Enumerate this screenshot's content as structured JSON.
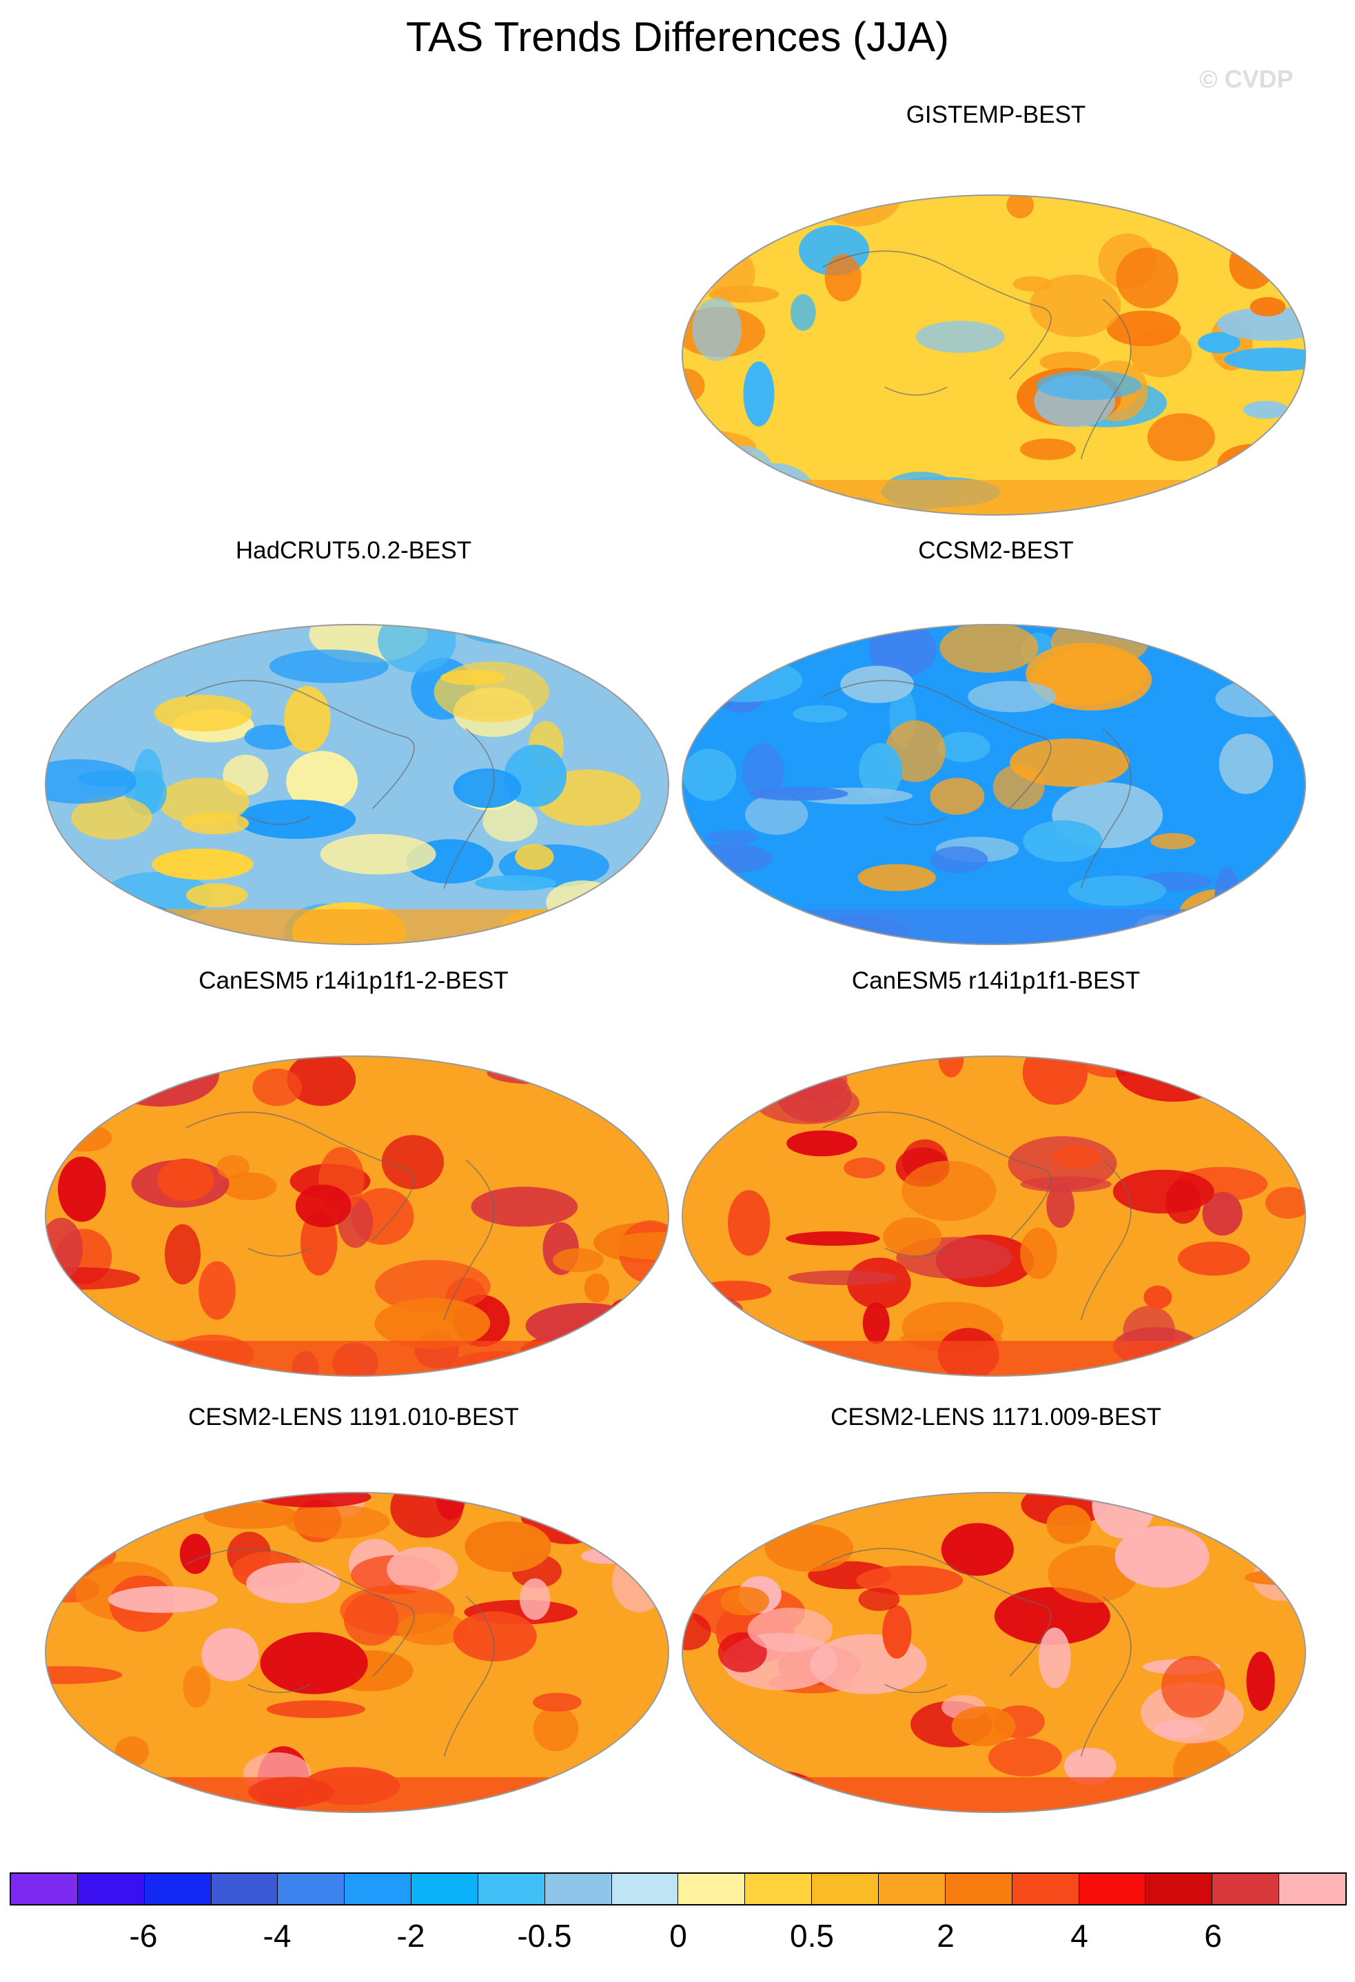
{
  "title": "TAS Trends Differences (JJA)",
  "watermark": "© CVDP",
  "panels": [
    {
      "label": "GISTEMP-BEST",
      "regime": "mixed",
      "base": "#fed33c",
      "accents": [
        "#8ec6e9",
        "#40b6f5",
        "#fba423",
        "#f77b0f"
      ]
    },
    {
      "label": "HadCRUT5.0.2-BEST",
      "regime": "mixed-cool",
      "base": "#8ec6e9",
      "accents": [
        "#40b6f5",
        "#fed33c",
        "#fff29e",
        "#1e9bfb"
      ]
    },
    {
      "label": "CCSM2-BEST",
      "regime": "cool",
      "base": "#1e9bfb",
      "accents": [
        "#40b6f5",
        "#8ec6e9",
        "#3d83ef",
        "#fba423"
      ]
    },
    {
      "label": "CanESM5 r14i1p1f1-2-BEST",
      "regime": "warm",
      "base": "#fba423",
      "accents": [
        "#f77b0f",
        "#f64a1a",
        "#e00c12",
        "#d8383b"
      ]
    },
    {
      "label": "CanESM5 r14i1p1f1-BEST",
      "regime": "warm",
      "base": "#fba423",
      "accents": [
        "#f77b0f",
        "#f64a1a",
        "#e00c12",
        "#d8383b"
      ]
    },
    {
      "label": "CESM2-LENS 1191.010-BEST",
      "regime": "warm",
      "base": "#fba423",
      "accents": [
        "#f77b0f",
        "#f64a1a",
        "#e00c12",
        "#ffb5b5"
      ]
    },
    {
      "label": "CESM2-LENS 1171.009-BEST",
      "regime": "warm",
      "base": "#fba423",
      "accents": [
        "#f77b0f",
        "#f64a1a",
        "#e00c12",
        "#ffb5b5"
      ]
    }
  ],
  "colorbar": {
    "colors": [
      "#7c2af0",
      "#3a10f0",
      "#1428f4",
      "#3c5ad8",
      "#3d83ef",
      "#1e9bfb",
      "#0cb2f9",
      "#40c0f7",
      "#8ec6e9",
      "#bfe4f6",
      "#fff29e",
      "#fed33c",
      "#fbbb24",
      "#fba423",
      "#f77b0f",
      "#f64a1a",
      "#f90d0a",
      "#d00a0a",
      "#d8383b",
      "#ffb5b5"
    ],
    "tick_labels": [
      "-6",
      "-4",
      "-2",
      "-0.5",
      "0",
      "0.5",
      "2",
      "4",
      "6"
    ]
  }
}
